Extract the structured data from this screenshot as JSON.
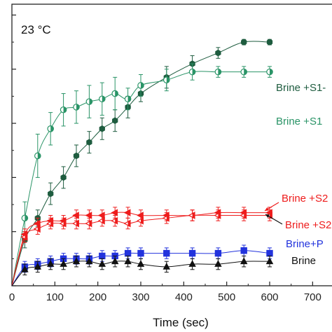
{
  "chart_data": {
    "type": "scatter",
    "title": "",
    "annotation": "23 °C",
    "xlabel": "Time (sec)",
    "ylabel": "",
    "xlim": [
      0,
      750
    ],
    "ylim": [
      0,
      52
    ],
    "x_ticks": [
      0,
      100,
      200,
      300,
      400,
      500,
      600,
      700
    ],
    "y_ticks": [
      0,
      10,
      20,
      30,
      40,
      50
    ],
    "grid": false,
    "series": [
      {
        "label": "Brine +S1-",
        "color": "#1e5c3f",
        "marker": "hexagon",
        "fill": "full",
        "x": [
          30,
          60,
          90,
          120,
          150,
          180,
          210,
          240,
          270,
          300,
          360,
          420,
          480,
          540,
          600
        ],
        "y": [
          8.5,
          12.5,
          17,
          20,
          24,
          26.5,
          29,
          30.5,
          33,
          35.5,
          38.5,
          41,
          43,
          45,
          45
        ],
        "err": [
          1.5,
          1.5,
          2,
          2,
          2,
          2,
          2,
          2,
          2,
          1.5,
          2,
          1.5,
          1,
          0.5,
          0.5
        ]
      },
      {
        "label": "Brine +S1",
        "color": "#2a9467",
        "marker": "circle",
        "fill": "half",
        "x": [
          30,
          60,
          90,
          120,
          150,
          180,
          210,
          240,
          270,
          300,
          360,
          420,
          480,
          540,
          600
        ],
        "y": [
          12.5,
          24,
          29,
          32.5,
          33,
          34,
          34.5,
          35.5,
          34.5,
          37,
          38,
          39.5,
          39.5,
          39.5,
          39.5
        ],
        "err": [
          3,
          4,
          3,
          3,
          3,
          3,
          3,
          3,
          2,
          2,
          2,
          1.5,
          1,
          1,
          1
        ]
      },
      {
        "label": "Brine +S2",
        "color": "#ee1c1c",
        "marker": "triangle-left",
        "fill": "full",
        "x": [
          30,
          60,
          90,
          120,
          150,
          180,
          210,
          240,
          270,
          300,
          360,
          420,
          480,
          540,
          600
        ],
        "y": [
          9.5,
          11.5,
          12,
          12,
          13,
          13,
          13,
          13.5,
          13.5,
          13,
          13,
          13,
          13.5,
          13.5,
          13.5
        ],
        "err": [
          1,
          1,
          1,
          1,
          1,
          1,
          1,
          1,
          1,
          1,
          1,
          1,
          1,
          1,
          1
        ]
      },
      {
        "label": "Brine +S2",
        "color": "#ee1c1c",
        "marker": "triangle-left",
        "fill": "half",
        "x": [
          30,
          60,
          90,
          120,
          150,
          180,
          210,
          240,
          270,
          300,
          360,
          420,
          480,
          540,
          600
        ],
        "y": [
          9,
          10.5,
          11.5,
          11.5,
          11.5,
          11.5,
          12,
          12,
          11.5,
          12,
          12.5,
          13,
          13,
          13,
          13
        ],
        "err": [
          1,
          1,
          1,
          1,
          1,
          1,
          1,
          1,
          1,
          1,
          1,
          1,
          1,
          1,
          1
        ]
      },
      {
        "label": "Brine+P",
        "color": "#2233dd",
        "marker": "square",
        "fill": "full",
        "x": [
          30,
          60,
          90,
          120,
          150,
          180,
          210,
          240,
          270,
          300,
          360,
          420,
          480,
          540,
          600
        ],
        "y": [
          3.5,
          4,
          4.5,
          5,
          5,
          5,
          5.5,
          5.5,
          6,
          6,
          6,
          6,
          6,
          6.5,
          6
        ],
        "err": [
          1,
          1,
          1,
          1,
          1,
          1,
          1,
          1,
          1,
          1,
          1,
          1,
          1,
          1,
          1
        ]
      },
      {
        "label": "Brine",
        "color": "#111111",
        "marker": "triangle-up",
        "fill": "full",
        "x": [
          30,
          60,
          90,
          120,
          150,
          180,
          210,
          240,
          270,
          300,
          360,
          420,
          480,
          540,
          600
        ],
        "y": [
          3,
          3.5,
          4,
          4,
          4.5,
          4.5,
          4,
          4.5,
          4.5,
          4,
          3.5,
          4,
          4,
          4.5,
          4.5
        ],
        "err": [
          1,
          1,
          1,
          1,
          1,
          1,
          1,
          1,
          1,
          1,
          1,
          1,
          1,
          1,
          1
        ]
      }
    ],
    "legend": [
      {
        "text": "Brine +S1-",
        "color": "#1e5c3f"
      },
      {
        "text": "Brine +S1",
        "color": "#2a9467"
      },
      {
        "text": "Brine +S2",
        "color": "#ee1c1c"
      },
      {
        "text": "Brine +S2",
        "color": "#ee1c1c"
      },
      {
        "text": "Brine+P",
        "color": "#2233dd"
      },
      {
        "text": "Brine",
        "color": "#111111"
      }
    ]
  }
}
